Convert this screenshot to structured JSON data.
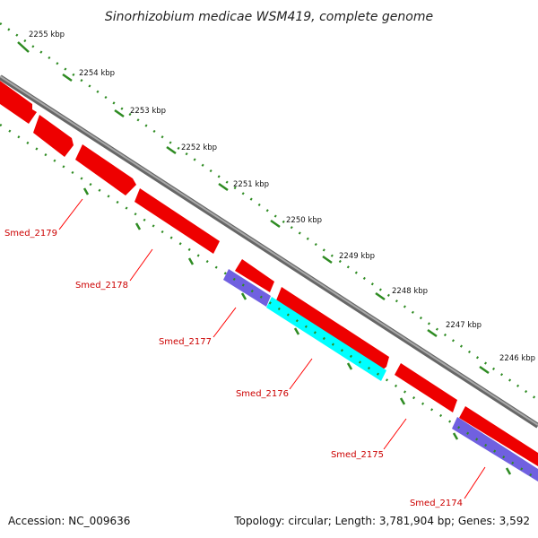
{
  "title": "Sinorhizobium medicae WSM419, complete genome",
  "footer": {
    "accession": "Accession: NC_009636",
    "summary": "Topology: circular; Length: 3,781,904 bp; Genes: 3,592"
  },
  "tick_labels": [
    "2255 kbp",
    "2254 kbp",
    "2253 kbp",
    "2252 kbp",
    "2251 kbp",
    "2250 kbp",
    "2249 kbp",
    "2248 kbp",
    "2247 kbp",
    "2246 kbp"
  ],
  "genes": [
    {
      "label": "Smed_2179",
      "color": "#ff0000",
      "track": "reverse"
    },
    {
      "label": "Smed_2178",
      "color": "#ff0000",
      "track": "reverse"
    },
    {
      "label": "Smed_2177",
      "color": "#7b68ee",
      "track": "reverse-inner"
    },
    {
      "label": "Smed_2176",
      "color": "#00ffff",
      "track": "reverse-inner"
    },
    {
      "label": "Smed_2175",
      "color": "#ff0000",
      "track": "reverse"
    },
    {
      "label": "Smed_2174",
      "color": "#7b68ee",
      "track": "reverse-inner"
    }
  ],
  "colors": {
    "backbone": "#888888",
    "tick_marks": "#2e8b22",
    "label_lines": "#ff0000"
  }
}
